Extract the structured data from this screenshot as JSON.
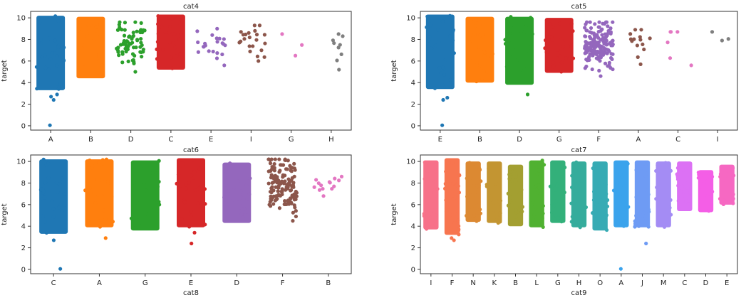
{
  "chart_data": [
    {
      "type": "scatter",
      "style": "strip",
      "title": "cat4",
      "xlabel": "",
      "ylabel": "target",
      "ylim": [
        -0.4,
        10.6
      ],
      "yticks": [
        0,
        2,
        4,
        6,
        8,
        10
      ],
      "grid": false,
      "categories": [
        {
          "label": "A",
          "color": "#1f77b4",
          "dense": true,
          "min": 3.3,
          "max": 10.2,
          "outliers": [
            0.05,
            2.4,
            2.7,
            2.9
          ]
        },
        {
          "label": "B",
          "color": "#ff7f0e",
          "dense": true,
          "min": 4.4,
          "max": 10.1,
          "outliers": []
        },
        {
          "label": "D",
          "color": "#2ca02c",
          "dense": false,
          "min": 5.0,
          "max": 9.6,
          "count": 70,
          "outliers": []
        },
        {
          "label": "C",
          "color": "#d62728",
          "dense": true,
          "min": 5.2,
          "max": 10.3,
          "outliers": []
        },
        {
          "label": "E",
          "color": "#9467bd",
          "dense": false,
          "min": 5.6,
          "max": 9.0,
          "count": 22,
          "outliers": []
        },
        {
          "label": "I",
          "color": "#8c564b",
          "dense": false,
          "min": 6.0,
          "max": 9.3,
          "count": 22,
          "outliers": []
        },
        {
          "label": "G",
          "color": "#e377c2",
          "dense": false,
          "min": 6.5,
          "max": 8.5,
          "count": 3,
          "outliers": []
        },
        {
          "label": "H",
          "color": "#7f7f7f",
          "dense": false,
          "min": 5.2,
          "max": 8.5,
          "count": 9,
          "outliers": []
        }
      ]
    },
    {
      "type": "scatter",
      "style": "strip",
      "title": "cat5",
      "xlabel": "",
      "ylabel": "target",
      "ylim": [
        -0.4,
        10.6
      ],
      "yticks": [
        0,
        2,
        4,
        6,
        8,
        10
      ],
      "grid": false,
      "categories": [
        {
          "label": "E",
          "color": "#1f77b4",
          "dense": true,
          "min": 3.4,
          "max": 10.3,
          "outliers": [
            0.05,
            2.4,
            2.6
          ]
        },
        {
          "label": "B",
          "color": "#ff7f0e",
          "dense": true,
          "min": 4.0,
          "max": 10.1,
          "outliers": []
        },
        {
          "label": "D",
          "color": "#2ca02c",
          "dense": true,
          "min": 3.8,
          "max": 10.1,
          "outliers": [
            2.9
          ]
        },
        {
          "label": "G",
          "color": "#d62728",
          "dense": true,
          "min": 4.9,
          "max": 10.0,
          "outliers": []
        },
        {
          "label": "F",
          "color": "#9467bd",
          "dense": false,
          "min": 4.6,
          "max": 9.6,
          "count": 160,
          "outliers": []
        },
        {
          "label": "A",
          "color": "#8c564b",
          "dense": false,
          "min": 5.7,
          "max": 8.9,
          "count": 14,
          "outliers": []
        },
        {
          "label": "C",
          "color": "#e377c2",
          "dense": false,
          "min": 5.6,
          "max": 8.7,
          "count": 6,
          "outliers": []
        },
        {
          "label": "I",
          "color": "#7f7f7f",
          "dense": false,
          "min": 7.9,
          "max": 8.7,
          "count": 3,
          "outliers": []
        }
      ]
    },
    {
      "type": "scatter",
      "style": "strip",
      "title": "cat6",
      "xlabel": "cat8",
      "ylabel": "target",
      "ylim": [
        -0.4,
        10.6
      ],
      "yticks": [
        0,
        2,
        4,
        6,
        8,
        10
      ],
      "grid": false,
      "categories": [
        {
          "label": "C",
          "color": "#1f77b4",
          "dense": true,
          "min": 3.3,
          "max": 10.2,
          "outliers": [
            0.05,
            2.7
          ]
        },
        {
          "label": "A",
          "color": "#ff7f0e",
          "dense": true,
          "min": 3.9,
          "max": 10.2,
          "outliers": [
            2.9
          ]
        },
        {
          "label": "G",
          "color": "#2ca02c",
          "dense": true,
          "min": 3.6,
          "max": 10.1,
          "outliers": []
        },
        {
          "label": "E",
          "color": "#d62728",
          "dense": true,
          "min": 3.9,
          "max": 10.3,
          "outliers": [
            2.4,
            3.4
          ]
        },
        {
          "label": "D",
          "color": "#9467bd",
          "dense": true,
          "min": 4.3,
          "max": 9.9,
          "outliers": []
        },
        {
          "label": "F",
          "color": "#8c564b",
          "dense": false,
          "min": 4.5,
          "max": 10.2,
          "count": 150,
          "outliers": []
        },
        {
          "label": "B",
          "color": "#e377c2",
          "dense": false,
          "min": 6.8,
          "max": 8.6,
          "count": 14,
          "outliers": []
        }
      ]
    },
    {
      "type": "scatter",
      "style": "strip",
      "title": "cat7",
      "xlabel": "cat9",
      "ylabel": "target",
      "ylim": [
        -0.4,
        10.6
      ],
      "yticks": [
        0,
        2,
        4,
        6,
        8,
        10
      ],
      "grid": false,
      "categories": [
        {
          "label": "I",
          "color": "#f77189",
          "dense": true,
          "min": 3.7,
          "max": 10.1,
          "outliers": []
        },
        {
          "label": "F",
          "color": "#f7754f",
          "dense": true,
          "min": 3.2,
          "max": 10.3,
          "outliers": [
            2.7,
            2.9
          ]
        },
        {
          "label": "N",
          "color": "#dc8932",
          "dense": true,
          "min": 4.4,
          "max": 10.0,
          "outliers": []
        },
        {
          "label": "K",
          "color": "#c39532",
          "dense": true,
          "min": 4.3,
          "max": 10.0,
          "outliers": []
        },
        {
          "label": "B",
          "color": "#a39f31",
          "dense": true,
          "min": 4.0,
          "max": 9.7,
          "outliers": []
        },
        {
          "label": "L",
          "color": "#50b131",
          "dense": true,
          "min": 3.9,
          "max": 10.1,
          "outliers": []
        },
        {
          "label": "G",
          "color": "#33b07a",
          "dense": true,
          "min": 4.3,
          "max": 10.1,
          "outliers": []
        },
        {
          "label": "H",
          "color": "#35ac9c",
          "dense": true,
          "min": 3.9,
          "max": 10.0,
          "outliers": []
        },
        {
          "label": "O",
          "color": "#37abb4",
          "dense": true,
          "min": 3.6,
          "max": 10.0,
          "outliers": []
        },
        {
          "label": "A",
          "color": "#3ba3ec",
          "dense": true,
          "min": 3.9,
          "max": 10.1,
          "outliers": [
            0.05
          ]
        },
        {
          "label": "J",
          "color": "#6e9bf4",
          "dense": true,
          "min": 3.9,
          "max": 10.1,
          "outliers": [
            2.4
          ]
        },
        {
          "label": "M",
          "color": "#a48cf4",
          "dense": true,
          "min": 3.9,
          "max": 10.0,
          "outliers": []
        },
        {
          "label": "C",
          "color": "#dc71f4",
          "dense": true,
          "min": 5.4,
          "max": 10.0,
          "outliers": []
        },
        {
          "label": "D",
          "color": "#f45ee6",
          "dense": true,
          "min": 5.3,
          "max": 9.2,
          "outliers": []
        },
        {
          "label": "E",
          "color": "#f668c2",
          "dense": true,
          "min": 6.0,
          "max": 9.7,
          "outliers": []
        }
      ]
    }
  ]
}
